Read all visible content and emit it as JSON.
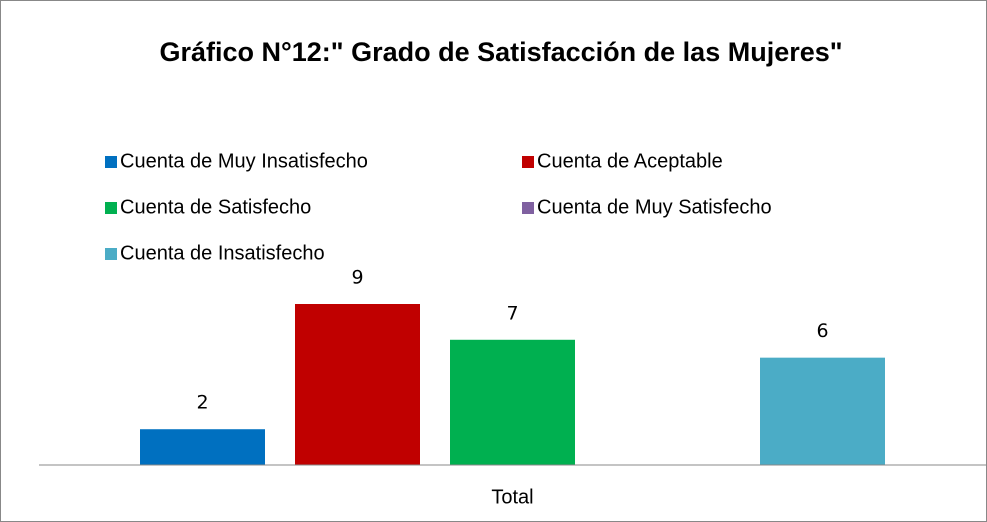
{
  "chart_data": {
    "type": "bar",
    "title": "Gráfico N°12:\" Grado de Satisfacción de las Mujeres\"",
    "categories": [
      "Total"
    ],
    "series": [
      {
        "name": "Cuenta de Muy Insatisfecho",
        "color": "#0070c0",
        "values": [
          2
        ]
      },
      {
        "name": "Cuenta de Aceptable",
        "color": "#c00000",
        "values": [
          9
        ]
      },
      {
        "name": "Cuenta de Satisfecho",
        "color": "#00b050",
        "values": [
          7
        ]
      },
      {
        "name": "Cuenta de Muy Satisfecho",
        "color": "#7f60a0",
        "values": [
          null
        ]
      },
      {
        "name": "Cuenta de Insatisfecho",
        "color": "#4bacc6",
        "values": [
          6
        ]
      }
    ]
  }
}
